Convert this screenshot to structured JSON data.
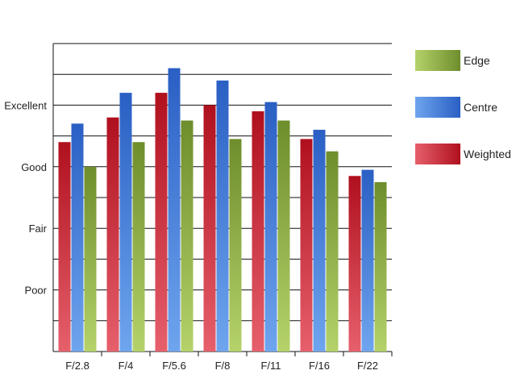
{
  "chart_data": {
    "type": "bar",
    "categories": [
      "F/2.8",
      "F/4",
      "F/5.6",
      "F/8",
      "F/11",
      "F/16",
      "F/22"
    ],
    "y_tick_labels": [
      {
        "label": "Poor",
        "value": 2
      },
      {
        "label": "Fair",
        "value": 4
      },
      {
        "label": "Good",
        "value": 6
      },
      {
        "label": "Excellent",
        "value": 8
      }
    ],
    "ylim": [
      0,
      10
    ],
    "grid": true,
    "legend_position": "right",
    "series": [
      {
        "name": "Weighted",
        "color_dark": "#b0101e",
        "color_light": "#e6606c",
        "values": [
          6.8,
          7.6,
          8.4,
          8.0,
          7.8,
          6.9,
          5.7
        ]
      },
      {
        "name": "Centre",
        "color_dark": "#2a5fc4",
        "color_light": "#6fa5ee",
        "values": [
          7.4,
          8.4,
          9.2,
          8.8,
          8.1,
          7.2,
          5.9
        ]
      },
      {
        "name": "Edge",
        "color_dark": "#6e8d2c",
        "color_light": "#b5d26a",
        "values": [
          6.0,
          6.8,
          7.5,
          6.9,
          7.5,
          6.5,
          5.5
        ]
      }
    ],
    "legend_order": [
      "Edge",
      "Centre",
      "Weighted"
    ]
  }
}
